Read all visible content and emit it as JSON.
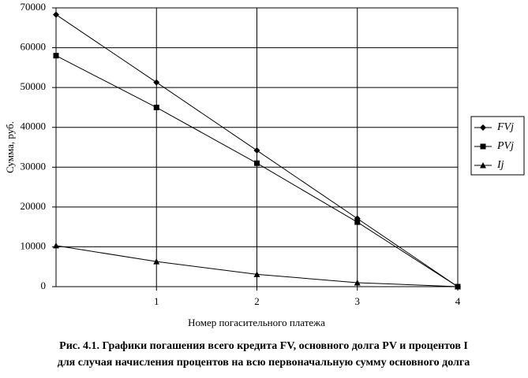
{
  "chart_data": {
    "type": "line",
    "x": [
      0,
      1,
      2,
      3,
      4
    ],
    "xlim": [
      0,
      4
    ],
    "xticks": [
      1,
      2,
      3,
      4
    ],
    "ylim": [
      0,
      70000
    ],
    "yticks": [
      0,
      10000,
      20000,
      30000,
      40000,
      50000,
      60000,
      70000
    ],
    "grid": true,
    "legend": "right",
    "xlabel": "Номер погасительного платежа",
    "ylabel": "Сумма, руб.",
    "caption": [
      "Рис. 4.1. Графики погашения всего кредита FV, основного долга PV и процентов I",
      "для случая начисления процентов на всю первоначальную сумму основного долга"
    ],
    "series": [
      {
        "name": "FVj",
        "color": "#000000",
        "marker": "diamond",
        "values": [
          68300,
          51300,
          34200,
          17100,
          0
        ]
      },
      {
        "name": "PVj",
        "color": "#000000",
        "marker": "square",
        "values": [
          58000,
          45000,
          31000,
          16200,
          0
        ]
      },
      {
        "name": "Ij",
        "color": "#000000",
        "marker": "triangle",
        "values": [
          10300,
          6300,
          3100,
          1000,
          0
        ]
      }
    ]
  }
}
